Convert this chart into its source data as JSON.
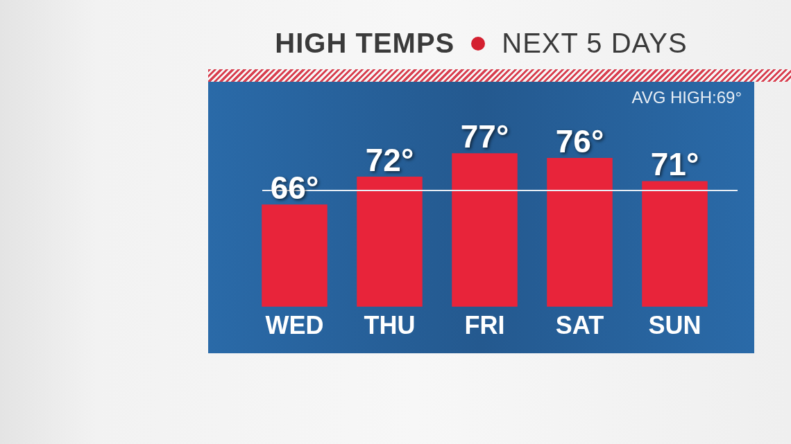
{
  "chart_data": {
    "type": "bar",
    "title": "HIGH TEMPS",
    "subtitle": "NEXT 5 DAYS",
    "categories": [
      "WED",
      "THU",
      "FRI",
      "SAT",
      "SUN"
    ],
    "values": [
      66,
      72,
      77,
      76,
      71
    ],
    "color": "#e8243a",
    "value_labels": [
      "66°",
      "72°",
      "77°",
      "76°",
      "71°"
    ],
    "grid": false,
    "legend": false,
    "ref_lines": [
      {
        "axis": "y",
        "value": 69,
        "label": "AVG HIGH:69°",
        "color": "#e8eef5"
      }
    ]
  }
}
